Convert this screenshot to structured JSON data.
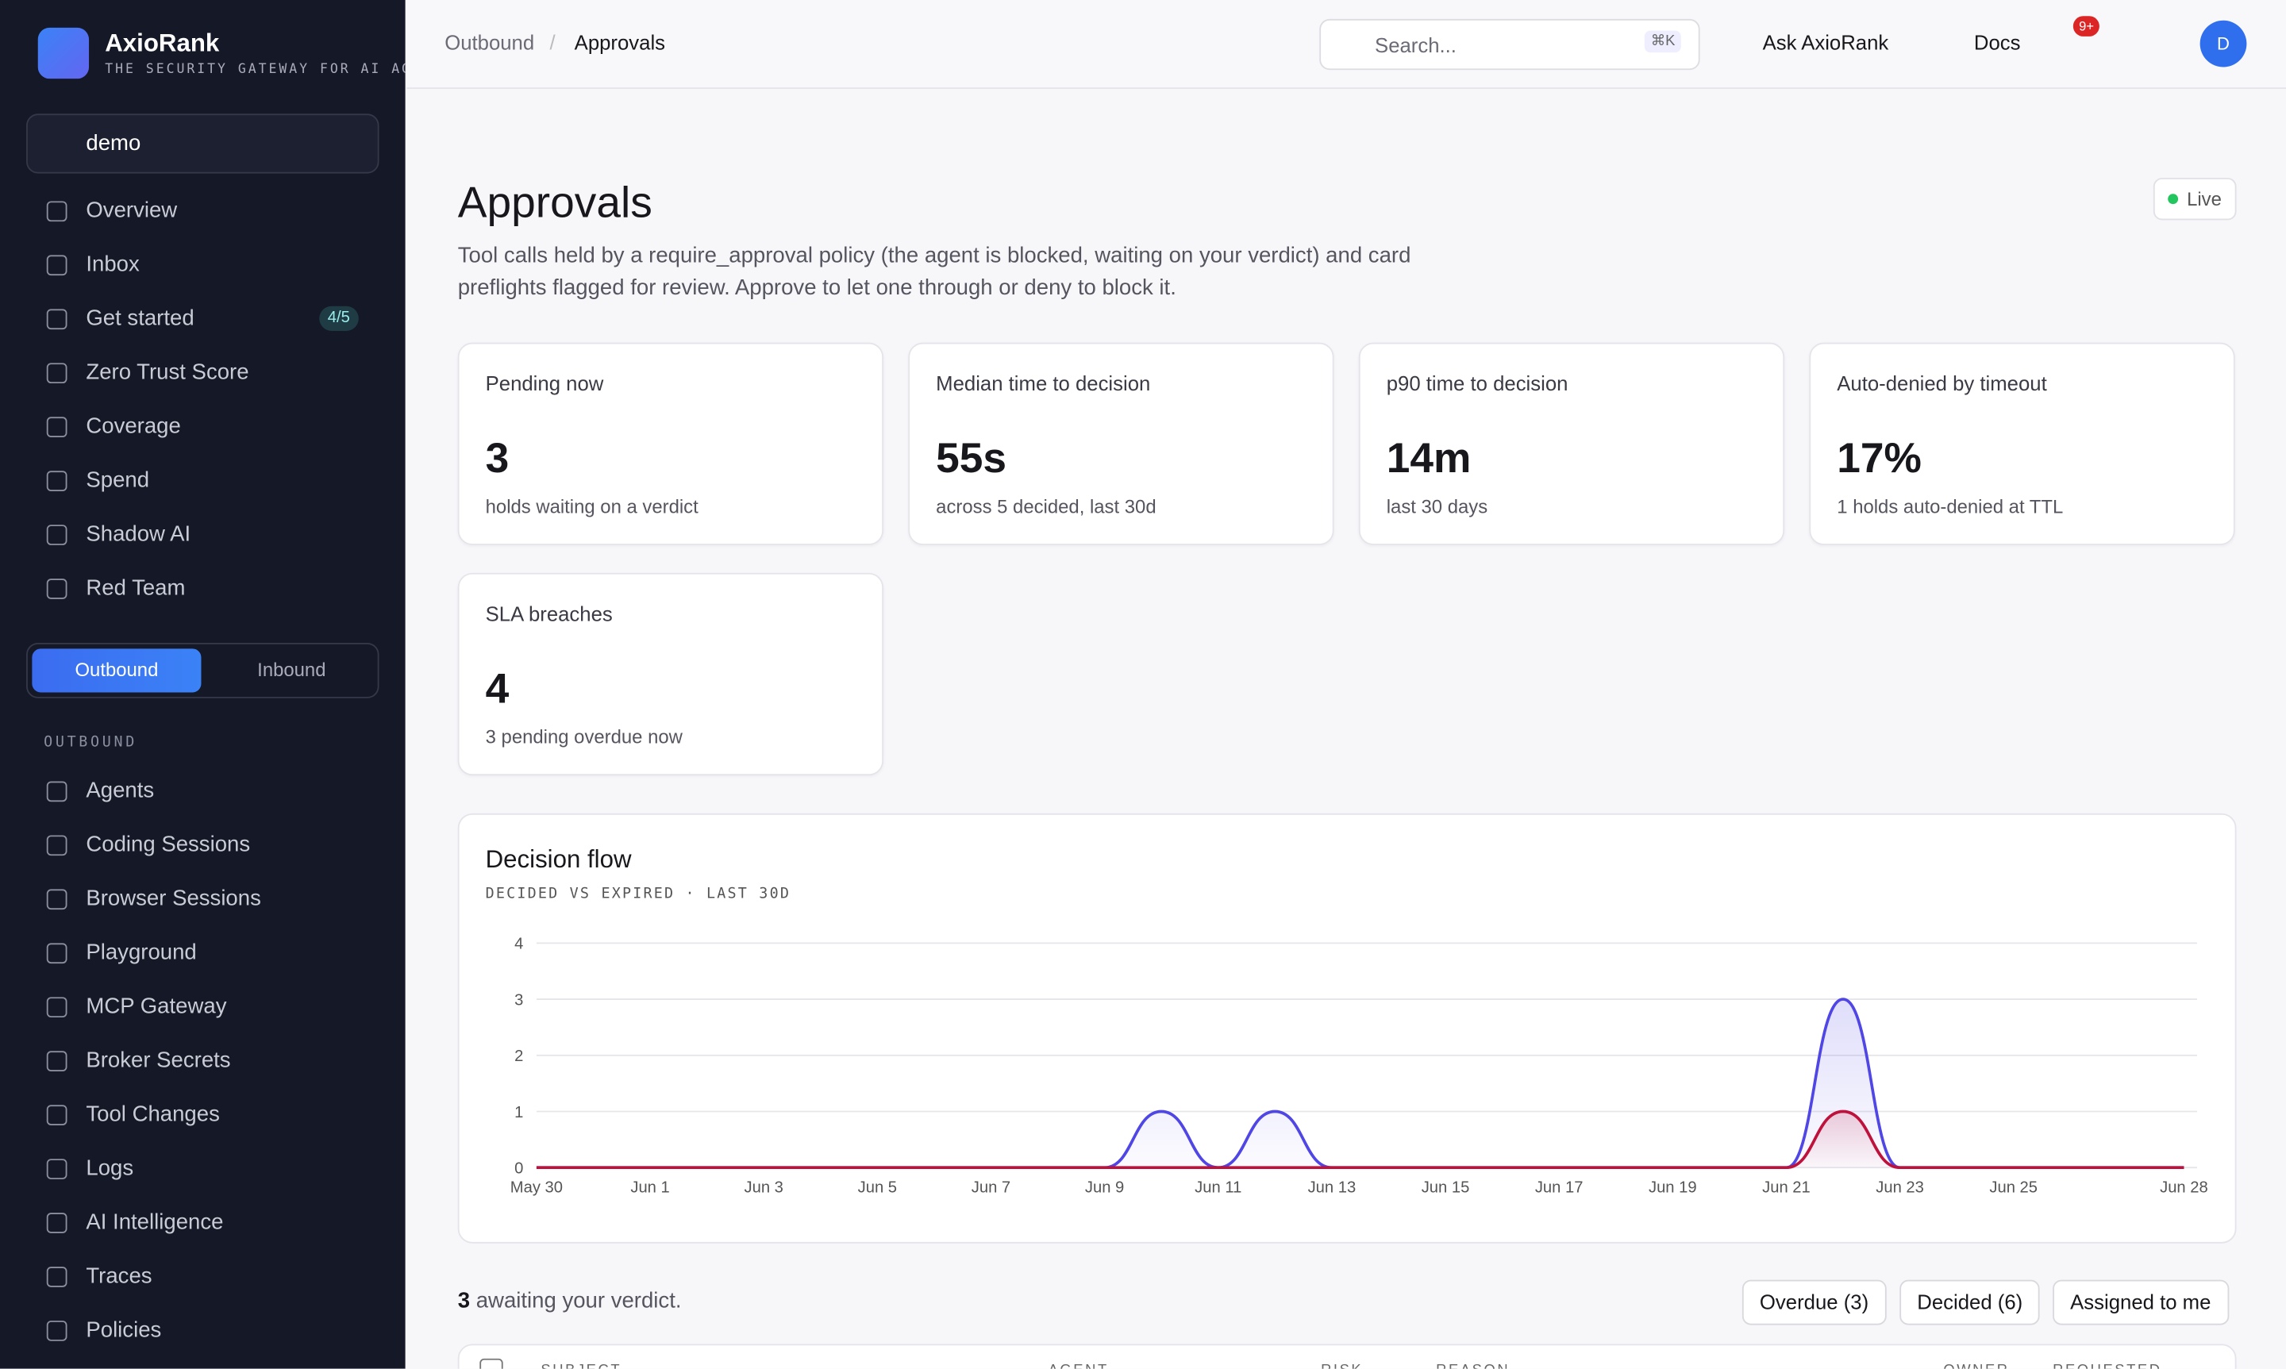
{
  "brand": {
    "name": "AxioRank",
    "tagline": "THE SECURITY GATEWAY FOR AI AG"
  },
  "workspace": "demo",
  "nav": [
    "Overview",
    "Inbox",
    "Get started",
    "Zero Trust Score",
    "Coverage",
    "Spend",
    "Shadow AI",
    "Red Team"
  ],
  "nav_badge": "4/5",
  "direction": [
    "Outbound",
    "Inbound"
  ],
  "section": "OUTBOUND",
  "outbound_nav": [
    "Agents",
    "Coding Sessions",
    "Browser Sessions",
    "Playground",
    "MCP Gateway",
    "Broker Secrets",
    "Tool Changes",
    "Logs",
    "AI Intelligence",
    "Traces",
    "Policies"
  ],
  "header": {
    "breadcrumb": [
      "Outbound",
      "Approvals"
    ],
    "search": "Search...",
    "shortcut": "⌘K",
    "ask": "Ask AxioRank",
    "docs": "Docs",
    "notifications": "9+",
    "avatar": "D"
  },
  "page": {
    "title": "Approvals",
    "description": "Tool calls held by a require_approval policy (the agent is blocked, waiting on your verdict) and card preflights flagged for review. Approve to let one through or deny to block it.",
    "status": "Live"
  },
  "cards": [
    {
      "label": "Pending now",
      "value": "3",
      "note": "holds waiting on a verdict"
    },
    {
      "label": "Median time to decision",
      "value": "55s",
      "note": "across 5 decided, last 30d"
    },
    {
      "label": "p90 time to decision",
      "value": "14m",
      "note": "last 30 days"
    },
    {
      "label": "Auto-denied by timeout",
      "value": "17%",
      "note": "1 holds auto-denied at TTL"
    },
    {
      "label": "SLA breaches",
      "value": "4",
      "note": "3 pending overdue now"
    }
  ],
  "chart_data": {
    "type": "area",
    "title": "Decision flow",
    "subtitle": "DECIDED VS EXPIRED · LAST 30D",
    "categories": [
      "May 30",
      null,
      "Jun 1",
      null,
      "Jun 3",
      null,
      "Jun 5",
      null,
      "Jun 7",
      null,
      "Jun 9",
      null,
      "Jun 11",
      null,
      "Jun 13",
      null,
      "Jun 15",
      null,
      "Jun 17",
      null,
      "Jun 19",
      null,
      "Jun 21",
      null,
      "Jun 23",
      null,
      "Jun 25",
      null,
      null,
      "Jun 28"
    ],
    "series": [
      {
        "color": "#4f46e5",
        "values": [
          0,
          0,
          0,
          0,
          0,
          0,
          0,
          0,
          0,
          0,
          0,
          1,
          0,
          1,
          0,
          0,
          0,
          0,
          0,
          0,
          0,
          0,
          0,
          3,
          0,
          0,
          0,
          0,
          0,
          0
        ]
      },
      {
        "color": "#be123c",
        "values": [
          0,
          0,
          0,
          0,
          0,
          0,
          0,
          0,
          0,
          0,
          0,
          0,
          0,
          0,
          0,
          0,
          0,
          0,
          0,
          0,
          0,
          0,
          0,
          1,
          0,
          0,
          0,
          0,
          0,
          0
        ]
      }
    ],
    "ylim": [
      0,
      4
    ],
    "yticks": [
      0,
      1,
      2,
      3,
      4
    ],
    "grid": true
  },
  "queue": {
    "count": "3",
    "text": "awaiting your verdict.",
    "filters": [
      "Overdue (3)",
      "Decided (6)",
      "Assigned to me"
    ],
    "columns": [
      "SUBJECT",
      "AGENT",
      "RISK",
      "REASON",
      "OWNER",
      "REQUESTED"
    ]
  }
}
